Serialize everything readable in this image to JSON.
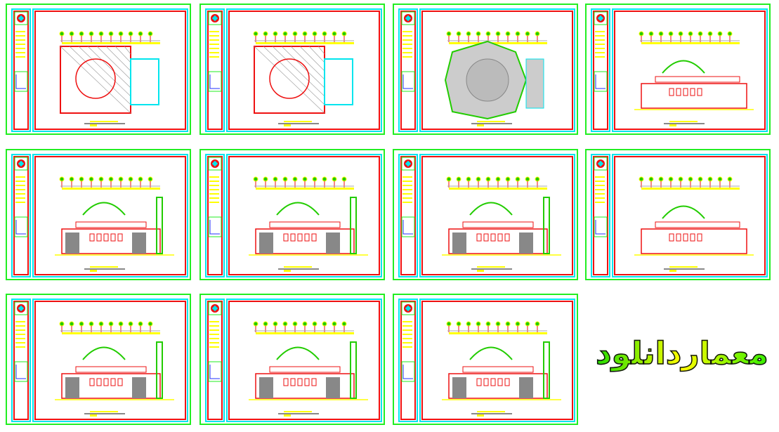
{
  "colors": {
    "sheet_border": "#22ee22",
    "frame_cyan": "#00e5ee",
    "frame_red": "#ee1111",
    "annotation": "#ffff00",
    "wall": "#ee1111",
    "dome": "#22cc00",
    "hatch": "#999999"
  },
  "sheets": [
    {
      "type": "floor-plan"
    },
    {
      "type": "floor-plan"
    },
    {
      "type": "roof-plan"
    },
    {
      "type": "elevation-small"
    },
    {
      "type": "elevation"
    },
    {
      "type": "elevation"
    },
    {
      "type": "elevation"
    },
    {
      "type": "section"
    },
    {
      "type": "elevation"
    },
    {
      "type": "elevation"
    },
    {
      "type": "elevation"
    }
  ],
  "logo": {
    "text": "معماردانلود"
  }
}
